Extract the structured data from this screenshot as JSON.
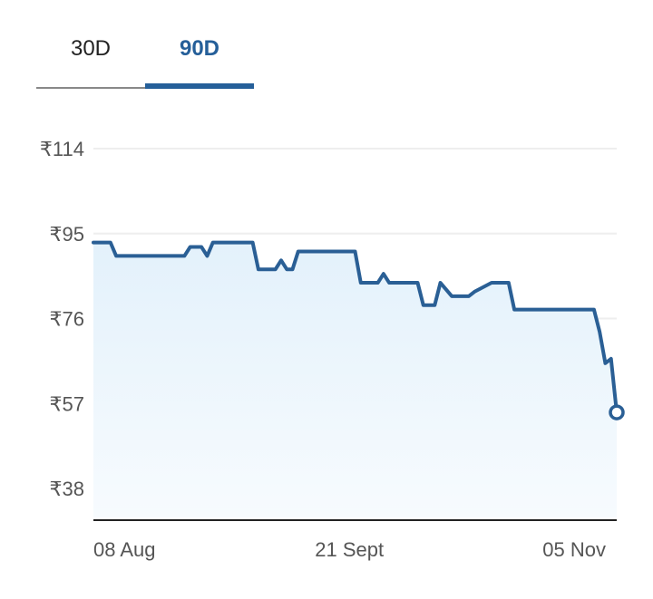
{
  "tabs": [
    {
      "label": "30D",
      "active": false
    },
    {
      "label": "90D",
      "active": true
    }
  ],
  "colors": {
    "accent": "#255f99",
    "line": "#2a5f95",
    "fill_top": "#e3f1fb",
    "grid": "#eeeeee",
    "axis": "#222222"
  },
  "chart_data": {
    "type": "area",
    "title": "",
    "xlabel": "",
    "ylabel": "",
    "ylim": [
      38,
      114
    ],
    "yticks": [
      114,
      95,
      76,
      57,
      38
    ],
    "y_tick_labels": [
      "₹114",
      "₹95",
      "₹76",
      "₹57",
      "₹38"
    ],
    "x_tick_labels": [
      "08 Aug",
      "21 Sept",
      "05 Nov"
    ],
    "x_tick_positions": [
      0,
      45,
      89
    ],
    "x_range": [
      0,
      92
    ],
    "grid": true,
    "legend": "none",
    "series": [
      {
        "x": [
          0,
          3,
          4,
          16,
          17,
          19,
          20,
          21,
          22,
          28,
          29,
          32,
          33,
          34,
          35,
          36,
          37,
          46,
          47,
          50,
          51,
          52,
          53,
          57,
          58,
          60,
          61,
          63,
          66,
          67,
          70,
          73,
          74,
          88,
          89,
          90,
          91,
          92
        ],
        "y": [
          93,
          93,
          90,
          90,
          92,
          92,
          90,
          93,
          93,
          93,
          87,
          87,
          89,
          87,
          87,
          91,
          91,
          91,
          84,
          84,
          86,
          84,
          84,
          84,
          79,
          79,
          84,
          81,
          81,
          82,
          84,
          84,
          78,
          78,
          73,
          66,
          67,
          55
        ]
      }
    ],
    "last_point_marker": true
  }
}
